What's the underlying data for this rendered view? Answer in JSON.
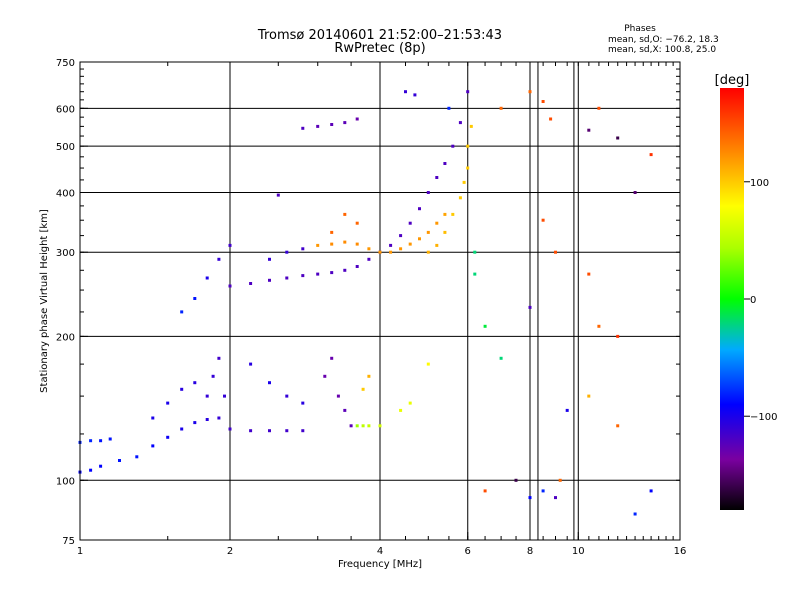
{
  "chart_data": {
    "type": "scatter",
    "title": "Tromsø 20140601 21:52:00–21:53:43",
    "subtitle": "RwPretec (8p)",
    "xlabel": "Frequency [MHz]",
    "ylabel": "Stationary phase Virtual Height [km]",
    "x_scale": "log",
    "y_scale": "log",
    "xlim": [
      1,
      16
    ],
    "ylim": [
      75,
      750
    ],
    "x_ticks": [
      1,
      2,
      4,
      6,
      8,
      10,
      16
    ],
    "x_tick_labels": [
      "1",
      "2",
      "4",
      "6",
      "8",
      "10",
      "16"
    ],
    "y_ticks": [
      75,
      100,
      200,
      300,
      400,
      500,
      600,
      750
    ],
    "y_tick_labels": [
      "75",
      "100",
      "200",
      "300",
      "400",
      "500",
      "600",
      "750"
    ],
    "grid": true,
    "legend": {
      "heading": "Phases",
      "line1": "mean, sd,O: −76.2, 18.3",
      "line2": "mean, sd,X: 100.8, 25.0",
      "placement": "top-right"
    },
    "colorbar": {
      "label": "[deg]",
      "min": -180,
      "max": 180,
      "ticks": [
        100,
        0,
        -100
      ],
      "tick_labels": [
        "100",
        "0",
        "−100"
      ]
    },
    "series": [
      {
        "points": [
          [
            1.0,
            104,
            -90
          ],
          [
            1.05,
            105,
            -90
          ],
          [
            1.1,
            107,
            -90
          ],
          [
            1.2,
            110,
            -85
          ],
          [
            1.3,
            112,
            -85
          ],
          [
            1.4,
            118,
            -90
          ],
          [
            1.5,
            123,
            -95
          ],
          [
            1.6,
            128,
            -100
          ],
          [
            1.7,
            132,
            -100
          ],
          [
            1.8,
            134,
            -105
          ],
          [
            1.9,
            135,
            -110
          ],
          [
            2.0,
            128,
            -115
          ],
          [
            2.2,
            127,
            -115
          ],
          [
            2.4,
            127,
            -115
          ],
          [
            2.6,
            127,
            -115
          ],
          [
            2.8,
            127,
            -115
          ],
          [
            1.0,
            120,
            -80
          ],
          [
            1.05,
            121,
            -80
          ],
          [
            1.1,
            121,
            -85
          ],
          [
            1.15,
            122,
            -85
          ],
          [
            1.4,
            135,
            -100
          ],
          [
            1.5,
            145,
            -100
          ],
          [
            1.6,
            155,
            -105
          ],
          [
            1.7,
            160,
            -105
          ],
          [
            1.8,
            150,
            -110
          ],
          [
            1.85,
            165,
            -110
          ],
          [
            1.9,
            180,
            -115
          ],
          [
            1.95,
            150,
            -110
          ],
          [
            2.2,
            175,
            -105
          ],
          [
            2.4,
            160,
            -100
          ],
          [
            2.6,
            150,
            -110
          ],
          [
            2.8,
            145,
            -105
          ],
          [
            3.1,
            165,
            -130
          ],
          [
            3.2,
            180,
            -130
          ],
          [
            3.3,
            150,
            -130
          ],
          [
            3.4,
            140,
            -125
          ],
          [
            3.5,
            130,
            -125
          ],
          [
            3.6,
            130,
            40
          ],
          [
            3.7,
            130,
            50
          ],
          [
            3.8,
            130,
            55
          ],
          [
            4.0,
            130,
            60
          ],
          [
            3.7,
            155,
            100
          ],
          [
            3.8,
            165,
            110
          ],
          [
            4.4,
            140,
            70
          ],
          [
            4.6,
            145,
            70
          ],
          [
            5.0,
            175,
            80
          ],
          [
            1.6,
            225,
            -80
          ],
          [
            1.7,
            240,
            -85
          ],
          [
            1.8,
            265,
            -100
          ],
          [
            1.9,
            290,
            -110
          ],
          [
            2.0,
            310,
            -115
          ],
          [
            2.0,
            255,
            -120
          ],
          [
            2.2,
            258,
            -120
          ],
          [
            2.4,
            262,
            -120
          ],
          [
            2.6,
            265,
            -120
          ],
          [
            2.8,
            268,
            -120
          ],
          [
            3.0,
            270,
            -120
          ],
          [
            3.2,
            272,
            -120
          ],
          [
            3.4,
            275,
            -120
          ],
          [
            3.6,
            280,
            -120
          ],
          [
            3.8,
            290,
            -120
          ],
          [
            4.0,
            300,
            -120
          ],
          [
            4.2,
            310,
            -120
          ],
          [
            4.4,
            325,
            -120
          ],
          [
            4.6,
            345,
            -120
          ],
          [
            4.8,
            370,
            -120
          ],
          [
            5.0,
            400,
            -120
          ],
          [
            5.2,
            430,
            -120
          ],
          [
            5.4,
            460,
            -120
          ],
          [
            5.6,
            500,
            -120
          ],
          [
            5.8,
            560,
            -120
          ],
          [
            6.0,
            650,
            -120
          ],
          [
            2.4,
            290,
            -110
          ],
          [
            2.6,
            300,
            -110
          ],
          [
            2.8,
            305,
            -115
          ],
          [
            2.5,
            395,
            -120
          ],
          [
            3.0,
            310,
            120
          ],
          [
            3.2,
            312,
            125
          ],
          [
            3.4,
            315,
            125
          ],
          [
            3.6,
            312,
            125
          ],
          [
            3.8,
            305,
            120
          ],
          [
            4.0,
            300,
            120
          ],
          [
            4.2,
            300,
            120
          ],
          [
            4.4,
            305,
            120
          ],
          [
            4.6,
            312,
            120
          ],
          [
            4.8,
            320,
            120
          ],
          [
            5.0,
            330,
            120
          ],
          [
            5.2,
            345,
            120
          ],
          [
            5.4,
            360,
            115
          ],
          [
            3.2,
            330,
            140
          ],
          [
            3.4,
            360,
            140
          ],
          [
            3.6,
            345,
            140
          ],
          [
            5.0,
            300,
            110
          ],
          [
            5.2,
            310,
            110
          ],
          [
            5.4,
            330,
            105
          ],
          [
            5.6,
            360,
            100
          ],
          [
            5.8,
            390,
            100
          ],
          [
            5.9,
            420,
            100
          ],
          [
            6.0,
            450,
            100
          ],
          [
            6.0,
            500,
            100
          ],
          [
            6.1,
            550,
            100
          ],
          [
            2.8,
            545,
            -120
          ],
          [
            3.0,
            550,
            -125
          ],
          [
            3.2,
            555,
            -125
          ],
          [
            3.4,
            560,
            -125
          ],
          [
            3.6,
            570,
            -130
          ],
          [
            4.5,
            650,
            -110
          ],
          [
            4.7,
            640,
            -110
          ],
          [
            5.5,
            600,
            -80
          ],
          [
            6.2,
            300,
            -20
          ],
          [
            6.2,
            270,
            -20
          ],
          [
            6.5,
            210,
            -10
          ],
          [
            7.0,
            180,
            -20
          ],
          [
            7.0,
            600,
            140
          ],
          [
            8.0,
            650,
            140
          ],
          [
            8.5,
            620,
            150
          ],
          [
            8.8,
            570,
            150
          ],
          [
            10.5,
            540,
            -150
          ],
          [
            11.0,
            600,
            150
          ],
          [
            12.0,
            520,
            -160
          ],
          [
            14.0,
            480,
            160
          ],
          [
            8.5,
            350,
            150
          ],
          [
            9.0,
            300,
            150
          ],
          [
            10.5,
            270,
            150
          ],
          [
            11.0,
            210,
            140
          ],
          [
            12.0,
            200,
            160
          ],
          [
            13.0,
            400,
            -150
          ],
          [
            8.0,
            230,
            -120
          ],
          [
            9.5,
            140,
            -100
          ],
          [
            10.5,
            150,
            110
          ],
          [
            12.0,
            130,
            140
          ],
          [
            14.0,
            95,
            -90
          ],
          [
            13.0,
            85,
            -80
          ],
          [
            7.5,
            100,
            -160
          ],
          [
            8.0,
            92,
            -90
          ],
          [
            8.5,
            95,
            -80
          ],
          [
            9.0,
            92,
            -120
          ],
          [
            9.2,
            100,
            140
          ],
          [
            6.5,
            95,
            150
          ]
        ]
      }
    ]
  }
}
